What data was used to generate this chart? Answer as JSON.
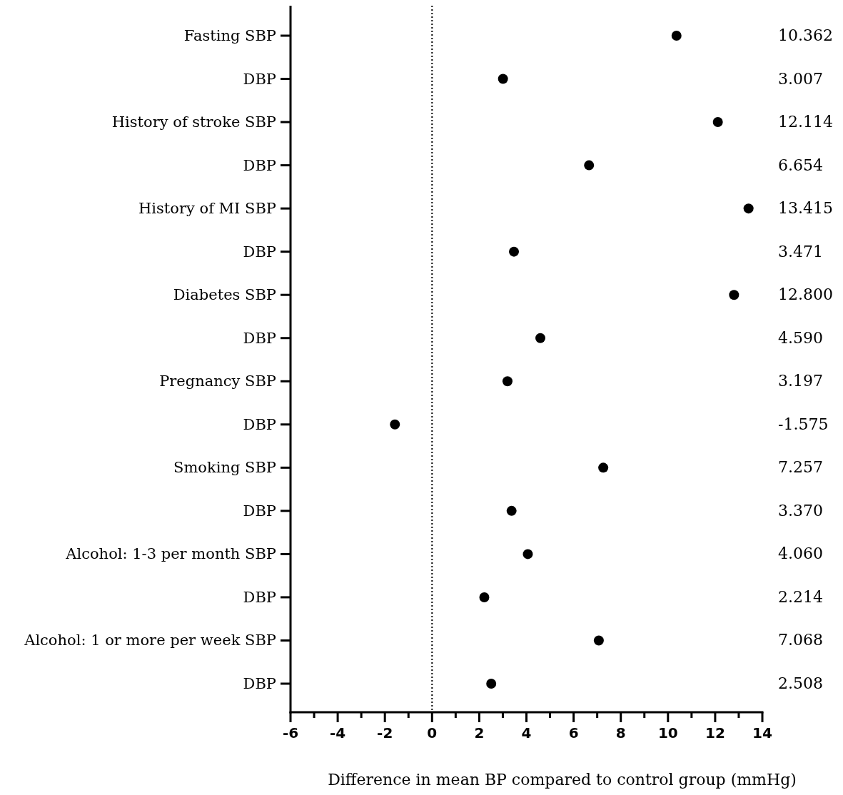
{
  "chart_data": {
    "type": "scatter",
    "orientation": "horizontal",
    "xlabel": "Difference in mean BP compared to control group (mmHg)",
    "categories": [
      "Fasting SBP",
      "DBP",
      "History of stroke SBP",
      "DBP",
      "History of MI SBP",
      "DBP",
      "Diabetes SBP",
      "DBP",
      "Pregnancy SBP",
      "DBP",
      "Smoking SBP",
      "DBP",
      "Alcohol: 1-3 per month SBP",
      "DBP",
      "Alcohol: 1 or more per week SBP",
      "DBP"
    ],
    "values": [
      10.362,
      3.007,
      12.114,
      6.654,
      13.415,
      3.471,
      12.8,
      4.59,
      3.197,
      -1.575,
      7.257,
      3.37,
      4.06,
      2.214,
      7.068,
      2.508
    ],
    "value_labels": [
      "10.362",
      "3.007",
      "12.114",
      "6.654",
      "13.415",
      "3.471",
      "12.800",
      "4.590",
      "3.197",
      "-1.575",
      "7.257",
      "3.370",
      "4.060",
      "2.214",
      "7.068",
      "2.508"
    ],
    "color": "#000000",
    "marker": "circle",
    "xlim": [
      -6,
      14
    ],
    "xticks": [
      -6,
      {
        "value": -5,
        "label": null
      },
      -4,
      {
        "value": -3,
        "label": null
      },
      -2,
      {
        "value": -1,
        "label": null
      },
      0,
      {
        "value": 1,
        "label": null
      },
      2,
      {
        "value": 3,
        "label": null
      },
      4,
      {
        "value": 5,
        "label": null
      },
      6,
      {
        "value": 7,
        "label": null
      },
      8,
      {
        "value": 9,
        "label": null
      },
      10,
      {
        "value": 11,
        "label": null
      },
      12,
      {
        "value": 13,
        "label": null
      },
      14
    ],
    "ref_lines": [
      {
        "axis": "x",
        "value": 0,
        "line_style": "dotted",
        "color": "#000000"
      }
    ],
    "grid": false
  }
}
